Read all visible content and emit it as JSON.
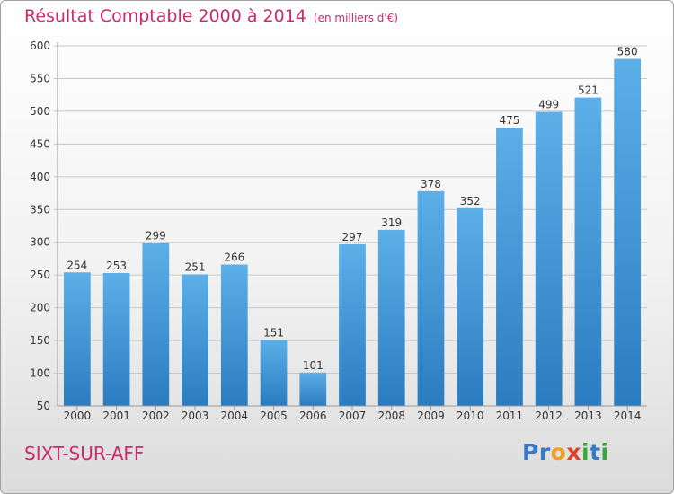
{
  "title": "Résultat Comptable 2000 à 2014",
  "subtitle": "(en milliers d'€)",
  "commune": "SIXT-SUR-AFF",
  "logo": {
    "text": "Proxiti",
    "letters": [
      {
        "char": "P",
        "color": "#3a78c8"
      },
      {
        "char": "r",
        "color": "#3a78c8"
      },
      {
        "char": "o",
        "color": "#f0a020"
      },
      {
        "char": "x",
        "color": "#e0402a"
      },
      {
        "char": "i",
        "color": "#3aa838"
      },
      {
        "char": "t",
        "color": "#3a78c8"
      },
      {
        "char": "i",
        "color": "#3aa838"
      }
    ]
  },
  "colors": {
    "accent_text": "#cc2a6a",
    "bar_top": "#5dafe8",
    "bar_bottom": "#2a7cc0",
    "grid": "#c8c8c8",
    "axis_text": "#333333"
  },
  "chart_data": {
    "type": "bar",
    "title": "Résultat Comptable 2000 à 2014",
    "subtitle": "(en milliers d'€)",
    "categories": [
      "2000",
      "2001",
      "2002",
      "2003",
      "2004",
      "2005",
      "2006",
      "2007",
      "2008",
      "2009",
      "2010",
      "2011",
      "2012",
      "2013",
      "2014"
    ],
    "values": [
      254,
      253,
      299,
      251,
      266,
      151,
      101,
      297,
      319,
      378,
      352,
      475,
      499,
      521,
      580
    ],
    "ylim": [
      50,
      600
    ],
    "yticks": [
      50,
      100,
      150,
      200,
      250,
      300,
      350,
      400,
      450,
      500,
      550,
      600
    ],
    "grid": true,
    "data_labels": true
  }
}
